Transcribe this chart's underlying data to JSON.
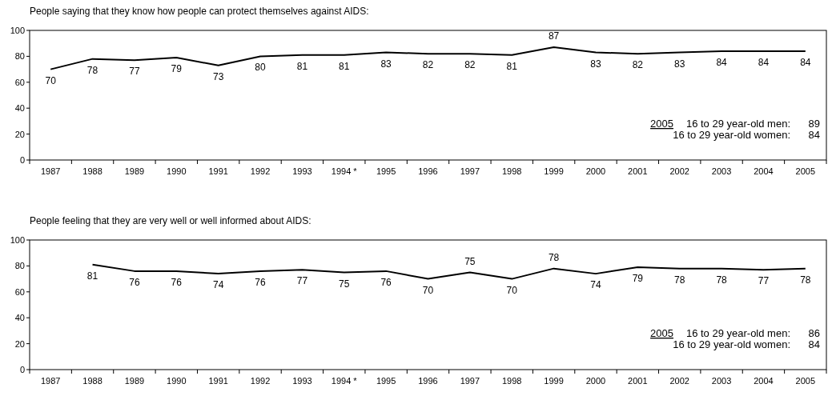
{
  "chart_data": [
    {
      "type": "line",
      "title": "People saying that they know how people can protect themselves against AIDS:",
      "categories": [
        "1987",
        "1988",
        "1989",
        "1990",
        "1991",
        "1992",
        "1993",
        "1994 *",
        "1995",
        "1996",
        "1997",
        "1998",
        "1999",
        "2000",
        "2001",
        "2002",
        "2003",
        "2004",
        "2005"
      ],
      "series": [
        {
          "color": "#000000",
          "values": [
            70,
            78,
            77,
            79,
            73,
            80,
            81,
            81,
            83,
            82,
            82,
            81,
            87,
            83,
            82,
            83,
            84,
            84,
            84
          ]
        }
      ],
      "ylim": [
        0,
        100
      ],
      "yticks": [
        0,
        20,
        40,
        60,
        80,
        100
      ],
      "data_labels": true,
      "annotations": [
        "2005",
        "16 to 29 year-old men:",
        "89",
        "16 to 29 year-old women:",
        "84"
      ]
    },
    {
      "type": "line",
      "title": "People feeling that they are very well or well informed about AIDS:",
      "categories": [
        "1987",
        "1988",
        "1989",
        "1990",
        "1991",
        "1992",
        "1993",
        "1994 *",
        "1995",
        "1996",
        "1997",
        "1998",
        "1999",
        "2000",
        "2001",
        "2002",
        "2003",
        "2004",
        "2005"
      ],
      "series": [
        {
          "color": "#000000",
          "values": [
            null,
            81,
            76,
            76,
            74,
            76,
            77,
            75,
            76,
            70,
            75,
            70,
            78,
            74,
            79,
            78,
            78,
            77,
            78
          ]
        }
      ],
      "ylim": [
        0,
        100
      ],
      "yticks": [
        0,
        20,
        40,
        60,
        80,
        100
      ],
      "data_labels": true,
      "annotations": [
        "2005",
        "16 to 29 year-old men:",
        "86",
        "16 to 29 year-old women:",
        "84"
      ]
    }
  ]
}
